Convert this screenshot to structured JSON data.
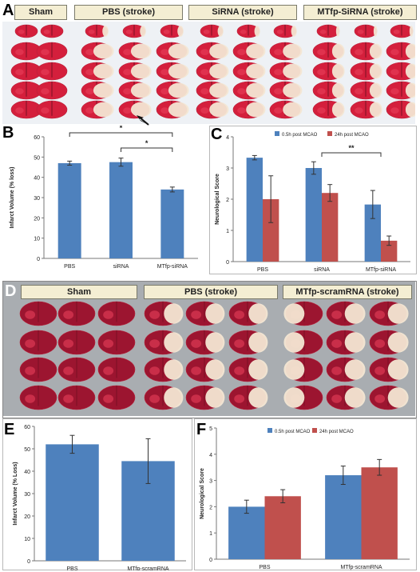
{
  "panels": {
    "a": {
      "letter": "A",
      "headers": [
        "Sham",
        "PBS (stroke)",
        "SiRNA (stroke)",
        "MTfp-SiRNA (stroke)"
      ]
    },
    "b": {
      "letter": "B"
    },
    "c": {
      "letter": "C"
    },
    "d": {
      "letter": "D",
      "headers": [
        "Sham",
        "PBS (stroke)",
        "MTfp-scramRNA (stroke)"
      ]
    },
    "e": {
      "letter": "E"
    },
    "f": {
      "letter": "F"
    }
  },
  "colors": {
    "blue": "#4e81bd",
    "red": "#c0504d",
    "header_fill": "#f4eed3"
  },
  "chart_data": [
    {
      "id": "B",
      "type": "bar",
      "ylabel": "Infarct Volume (% loss)",
      "ylim": [
        0,
        60
      ],
      "yticks": [
        "0",
        "10",
        "20",
        "30",
        "40",
        "50",
        "60"
      ],
      "categories": [
        "PBS",
        "siRNA",
        "MTfp-siRNA"
      ],
      "values": [
        47,
        47.5,
        34
      ],
      "errors": [
        1,
        2,
        1.2
      ],
      "significance": [
        {
          "from": 0,
          "to": 2,
          "label": "*"
        },
        {
          "from": 1,
          "to": 2,
          "label": "*"
        }
      ]
    },
    {
      "id": "C",
      "type": "bar",
      "ylabel": "Neurological Score",
      "ylim": [
        0,
        4
      ],
      "yticks": [
        "0",
        "1",
        "2",
        "3",
        "4"
      ],
      "categories": [
        "PBS",
        "siRNA",
        "MTfp-siRNA"
      ],
      "series": [
        {
          "name": "0.5h post MCAO",
          "values": [
            3.33,
            3.0,
            1.83
          ],
          "errors": [
            0.07,
            0.2,
            0.45
          ]
        },
        {
          "name": "24h post MCAO",
          "values": [
            2.0,
            2.2,
            0.67
          ],
          "errors": [
            0.75,
            0.27,
            0.15
          ]
        }
      ],
      "significance": [
        {
          "from": 1,
          "to": 2,
          "label": "**"
        }
      ],
      "legend": "top"
    },
    {
      "id": "E",
      "type": "bar",
      "ylabel": "Infarct Volume (% Loss)",
      "ylim": [
        0,
        60
      ],
      "yticks": [
        "0",
        "10",
        "20",
        "30",
        "40",
        "50",
        "60"
      ],
      "categories": [
        "PBS",
        "MTfp-scramRNA"
      ],
      "values": [
        52,
        44.5
      ],
      "errors": [
        4,
        10
      ]
    },
    {
      "id": "F",
      "type": "bar",
      "ylabel": "Neurological Score",
      "ylim": [
        0,
        5
      ],
      "yticks": [
        "0",
        "1",
        "2",
        "3",
        "4",
        "5"
      ],
      "categories": [
        "PBS",
        "MTfp-scramRNA"
      ],
      "series": [
        {
          "name": "0.5h post MCAO",
          "values": [
            2.0,
            3.2
          ],
          "errors": [
            0.25,
            0.35
          ]
        },
        {
          "name": "24h post MCAO",
          "values": [
            2.4,
            3.5
          ],
          "errors": [
            0.25,
            0.3
          ]
        }
      ],
      "legend": "top"
    }
  ]
}
